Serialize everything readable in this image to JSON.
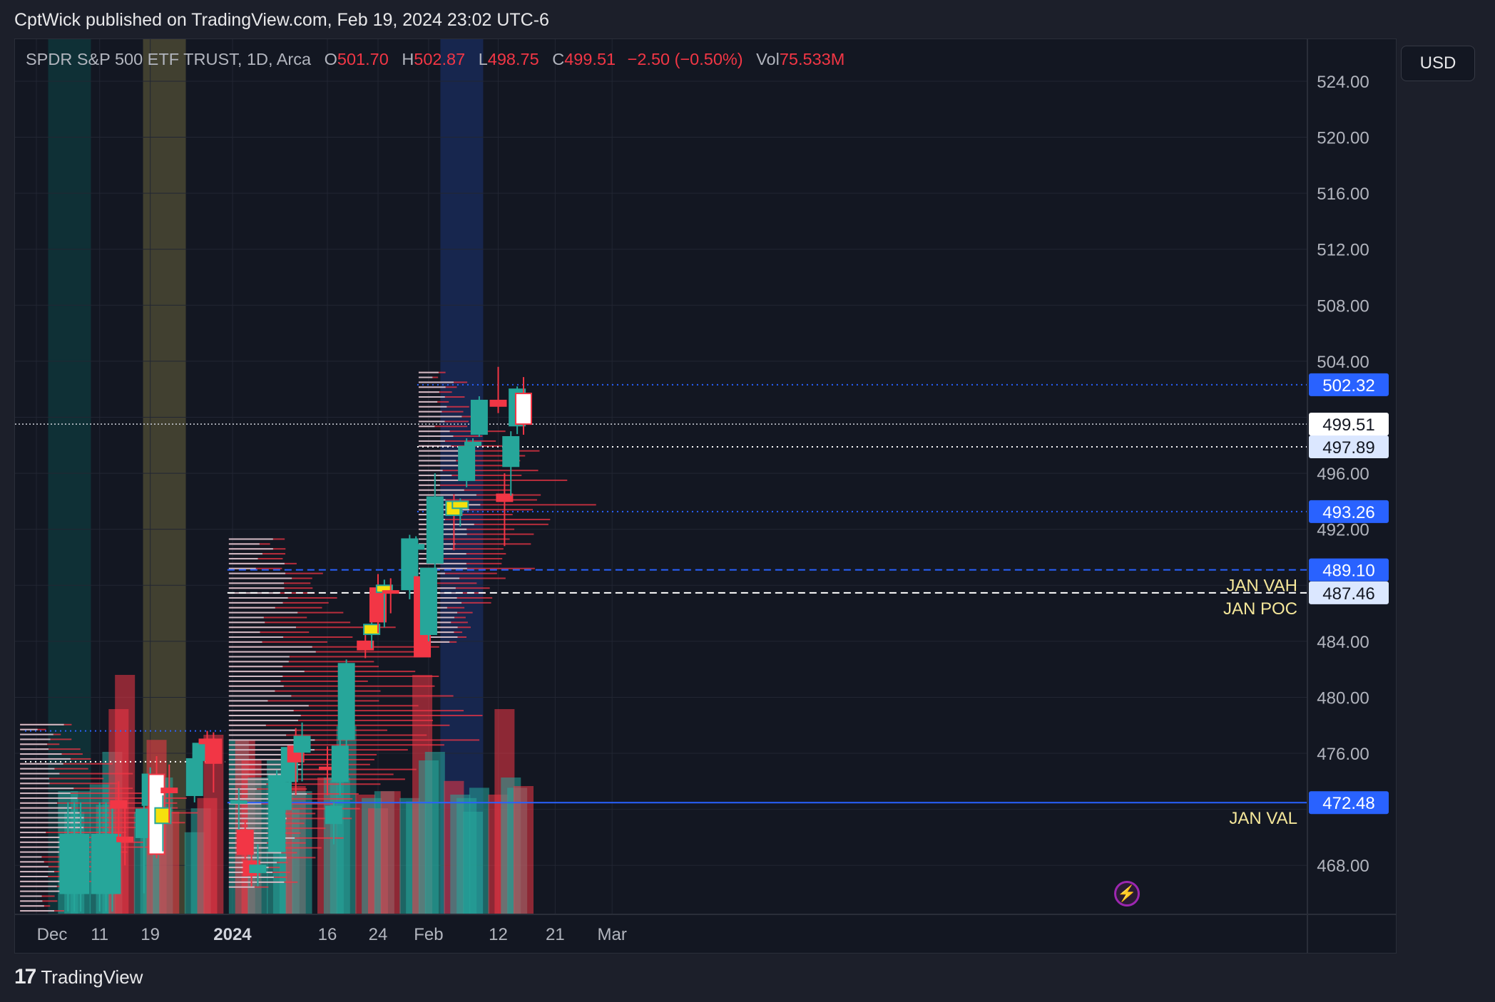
{
  "header": {
    "published": "CptWick published on TradingView.com, Feb 19, 2024 23:02 UTC-6"
  },
  "legend": {
    "symbol": "SPDR S&P 500 ETF TRUST, 1D, Arca",
    "o_label": "O",
    "o": "501.70",
    "h_label": "H",
    "h": "502.87",
    "l_label": "L",
    "l": "498.75",
    "c_label": "C",
    "c": "499.51",
    "change": "−2.50 (−0.50%)",
    "vol_label": "Vol",
    "vol": "75.533M"
  },
  "currency_button": "USD",
  "footer": {
    "logo_mark": "17",
    "brand": "TradingView"
  },
  "colors": {
    "up": "#26a69a",
    "down": "#f23645",
    "highlight": "#f5e10d",
    "level_blue": "#2962ff",
    "label_yellow": "#f5e79a"
  },
  "chart_data": {
    "type": "candlestick",
    "y_range": [
      464.5,
      527
    ],
    "price_ticks": [
      "524.00",
      "520.00",
      "516.00",
      "512.00",
      "508.00",
      "504.00",
      "496.00",
      "492.00",
      "484.00",
      "480.00",
      "476.00",
      "468.00"
    ],
    "x_ticks": [
      {
        "label": "Dec",
        "date": "2023-12-01",
        "bold": false
      },
      {
        "label": "11",
        "date": "2023-12-11",
        "bold": false
      },
      {
        "label": "19",
        "date": "2023-12-19",
        "bold": false
      },
      {
        "label": "2024",
        "date": "2024-01-01",
        "bold": true
      },
      {
        "label": "16",
        "date": "2024-01-16",
        "bold": false
      },
      {
        "label": "24",
        "date": "2024-01-24",
        "bold": false
      },
      {
        "label": "Feb",
        "date": "2024-02-01",
        "bold": false
      },
      {
        "label": "12",
        "date": "2024-02-12",
        "bold": false
      },
      {
        "label": "21",
        "date": "2024-02-21",
        "bold": false
      },
      {
        "label": "Mar",
        "date": "2024-03-01",
        "bold": false
      }
    ],
    "candles": [
      {
        "date": "2023-12-06",
        "o": 466.0,
        "h": 472.5,
        "l": 464.7,
        "c": 470.2,
        "vol": 0.72
      },
      {
        "date": "2023-12-07",
        "o": 466.0,
        "h": 472.5,
        "l": 464.7,
        "c": 470.2,
        "vol": 0.6
      },
      {
        "date": "2023-12-08",
        "o": 466.0,
        "h": 472.5,
        "l": 464.7,
        "c": 470.2,
        "vol": 0.72
      },
      {
        "date": "2023-12-11",
        "o": 466.0,
        "h": 472.5,
        "l": 464.7,
        "c": 470.2,
        "vol": 0.76
      },
      {
        "date": "2023-12-12",
        "o": 466.0,
        "h": 472.5,
        "l": 464.7,
        "c": 470.2,
        "vol": 0.64
      },
      {
        "date": "2023-12-13",
        "o": 466.0,
        "h": 472.5,
        "l": 464.7,
        "c": 470.2,
        "vol": 0.95
      },
      {
        "date": "2023-12-14",
        "o": 472.6,
        "h": 474.0,
        "l": 470.0,
        "c": 472.1,
        "vol": 1.2
      },
      {
        "date": "2023-12-15",
        "o": 470.0,
        "h": 472.5,
        "l": 468.0,
        "c": 469.7,
        "vol": 1.4
      },
      {
        "date": "2023-12-18",
        "o": 470.0,
        "h": 472.5,
        "l": 466.0,
        "c": 472.0,
        "vol": 0.6
      },
      {
        "date": "2023-12-19",
        "o": 472.3,
        "h": 475.0,
        "l": 471.5,
        "c": 474.5,
        "vol": 0.62
      },
      {
        "date": "2023-12-20",
        "o": 474.5,
        "h": 475.8,
        "l": 468.5,
        "c": 468.8,
        "vol": 1.02,
        "hollow": true
      },
      {
        "date": "2023-12-21",
        "o": 471.0,
        "h": 473.0,
        "l": 469.0,
        "c": 472.1,
        "vol": 0.8,
        "highlight": true
      },
      {
        "date": "2023-12-22",
        "o": 473.5,
        "h": 475.2,
        "l": 471.0,
        "c": 473.2,
        "vol": 0.6
      },
      {
        "date": "2023-12-26",
        "o": 473.0,
        "h": 476.5,
        "l": 472.5,
        "c": 475.6,
        "vol": 0.48
      },
      {
        "date": "2023-12-27",
        "o": 475.5,
        "h": 476.8,
        "l": 475.0,
        "c": 476.7,
        "vol": 0.62
      },
      {
        "date": "2023-12-28",
        "o": 477.0,
        "h": 477.6,
        "l": 476.3,
        "c": 476.7,
        "vol": 0.68
      },
      {
        "date": "2023-12-29",
        "o": 477.0,
        "h": 477.5,
        "l": 473.2,
        "c": 475.3,
        "vol": 1.05
      },
      {
        "date": "2024-01-02",
        "o": 472.5,
        "h": 473.5,
        "l": 470.5,
        "c": 472.6,
        "vol": 1.02
      },
      {
        "date": "2024-01-03",
        "o": 470.5,
        "h": 471.2,
        "l": 468.5,
        "c": 468.8,
        "vol": 1.02
      },
      {
        "date": "2024-01-04",
        "o": 468.3,
        "h": 470.0,
        "l": 466.5,
        "c": 467.3,
        "vol": 0.9
      },
      {
        "date": "2024-01-05",
        "o": 467.5,
        "h": 469.5,
        "l": 466.5,
        "c": 468.0,
        "vol": 0.8
      },
      {
        "date": "2024-01-08",
        "o": 469.0,
        "h": 474.8,
        "l": 469.0,
        "c": 474.4,
        "vol": 0.9
      },
      {
        "date": "2024-01-09",
        "o": 472.0,
        "h": 474.0,
        "l": 471.5,
        "c": 473.9,
        "vol": 0.7
      },
      {
        "date": "2024-01-10",
        "o": 474.0,
        "h": 476.5,
        "l": 473.5,
        "c": 476.4,
        "vol": 0.62
      },
      {
        "date": "2024-01-11",
        "o": 476.5,
        "h": 477.8,
        "l": 473.0,
        "c": 475.4,
        "vol": 0.75
      },
      {
        "date": "2024-01-12",
        "o": 476.1,
        "h": 478.2,
        "l": 474.0,
        "c": 477.2,
        "vol": 0.72
      },
      {
        "date": "2024-01-16",
        "o": 475.0,
        "h": 476.5,
        "l": 473.0,
        "c": 474.9,
        "vol": 0.8
      },
      {
        "date": "2024-01-17",
        "o": 471.0,
        "h": 472.5,
        "l": 469.5,
        "c": 472.2,
        "vol": 0.8
      },
      {
        "date": "2024-01-18",
        "o": 474.0,
        "h": 477.0,
        "l": 473.0,
        "c": 476.5,
        "vol": 0.8
      },
      {
        "date": "2024-01-19",
        "o": 477.0,
        "h": 482.7,
        "l": 476.5,
        "c": 482.4,
        "vol": 1.1
      },
      {
        "date": "2024-01-22",
        "o": 484.0,
        "h": 485.2,
        "l": 482.8,
        "c": 483.4,
        "vol": 0.7
      },
      {
        "date": "2024-01-23",
        "o": 484.5,
        "h": 485.5,
        "l": 483.5,
        "c": 485.2,
        "vol": 0.68,
        "highlight": true
      },
      {
        "date": "2024-01-24",
        "o": 487.8,
        "h": 488.8,
        "l": 484.6,
        "c": 485.4,
        "vol": 0.62
      },
      {
        "date": "2024-01-25",
        "o": 487.5,
        "h": 488.4,
        "l": 485.0,
        "c": 488.0,
        "vol": 0.72,
        "highlight": true
      },
      {
        "date": "2024-01-26",
        "o": 487.6,
        "h": 488.5,
        "l": 486.0,
        "c": 487.5,
        "vol": 0.72
      },
      {
        "date": "2024-01-29",
        "o": 487.7,
        "h": 491.6,
        "l": 487.0,
        "c": 491.3,
        "vol": 0.68
      },
      {
        "date": "2024-01-30",
        "o": 490.6,
        "h": 491.5,
        "l": 490.0,
        "c": 490.9,
        "vol": 0.66
      },
      {
        "date": "2024-01-31",
        "o": 488.6,
        "h": 489.1,
        "l": 482.9,
        "c": 482.9,
        "vol": 1.4
      },
      {
        "date": "2024-02-01",
        "o": 484.5,
        "h": 489.2,
        "l": 484.0,
        "c": 489.2,
        "vol": 0.9
      },
      {
        "date": "2024-02-02",
        "o": 489.6,
        "h": 496.0,
        "l": 489.0,
        "c": 494.3,
        "vol": 0.95
      },
      {
        "date": "2024-02-05",
        "o": 494.0,
        "h": 494.5,
        "l": 490.5,
        "c": 493.0,
        "vol": 0.78,
        "highlight": true
      },
      {
        "date": "2024-02-06",
        "o": 493.5,
        "h": 494.2,
        "l": 492.2,
        "c": 494.0,
        "vol": 0.7,
        "highlight": true
      },
      {
        "date": "2024-02-07",
        "o": 495.5,
        "h": 498.5,
        "l": 495.0,
        "c": 497.9,
        "vol": 0.68
      },
      {
        "date": "2024-02-08",
        "o": 498.0,
        "h": 498.5,
        "l": 497.0,
        "c": 498.2,
        "vol": 0.6
      },
      {
        "date": "2024-02-09",
        "o": 498.8,
        "h": 501.5,
        "l": 498.6,
        "c": 501.2,
        "vol": 0.74
      },
      {
        "date": "2024-02-12",
        "o": 501.2,
        "h": 503.6,
        "l": 500.3,
        "c": 500.8,
        "vol": 0.7
      },
      {
        "date": "2024-02-13",
        "o": 494.5,
        "h": 496.0,
        "l": 490.8,
        "c": 494.0,
        "vol": 1.2
      },
      {
        "date": "2024-02-14",
        "o": 496.5,
        "h": 499.0,
        "l": 494.4,
        "c": 498.6,
        "vol": 0.8
      },
      {
        "date": "2024-02-15",
        "o": 499.4,
        "h": 502.2,
        "l": 498.8,
        "c": 502.0,
        "vol": 0.74
      },
      {
        "date": "2024-02-16",
        "o": 501.7,
        "h": 502.87,
        "l": 498.75,
        "c": 499.51,
        "vol": 0.75,
        "hollow": true
      }
    ],
    "levels": [
      {
        "price": 502.32,
        "label": "502.32",
        "style": "dotted",
        "color": "#2962ff",
        "from": "2024-02-01"
      },
      {
        "price": 497.89,
        "label": "497.89",
        "style": "dotted",
        "color": "#ffffff",
        "from": "2024-02-01"
      },
      {
        "price": 493.26,
        "label": "493.26",
        "style": "dotted",
        "color": "#2962ff",
        "from": "2024-02-01"
      },
      {
        "price": 489.1,
        "label": "489.10",
        "style": "dashed",
        "color": "#2962ff",
        "from": "2024-01-02",
        "note": "JAN VAH"
      },
      {
        "price": 487.46,
        "label": "487.46",
        "style": "dashed",
        "color": "#ffffff",
        "from": "2024-01-02",
        "note": "JAN POC"
      },
      {
        "price": 472.48,
        "label": "472.48",
        "style": "solid",
        "color": "#2962ff",
        "from": "2024-01-02",
        "note": "JAN VAL"
      },
      {
        "price": 477.6,
        "style": "dotted",
        "color": "#2962ff",
        "from": "2023-12-01",
        "to": "2023-12-29"
      },
      {
        "price": 475.4,
        "style": "dotted",
        "color": "#ffffff",
        "from": "2023-12-01",
        "to": "2023-12-29"
      }
    ],
    "last_price": {
      "price": 499.51,
      "label": "499.51"
    },
    "shaded_columns": [
      {
        "date": "2023-12-05",
        "color": "rgba(0,150,136,0.20)"
      },
      {
        "date": "2023-12-20",
        "color": "rgba(233,215,100,0.22)"
      },
      {
        "date": "2024-02-05",
        "color": "rgba(41,98,255,0.20)"
      }
    ]
  }
}
